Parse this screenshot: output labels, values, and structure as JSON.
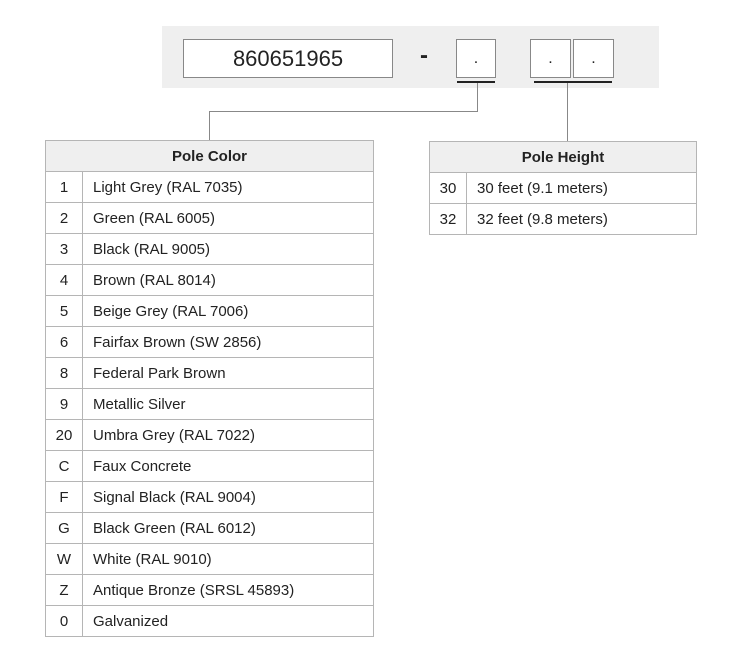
{
  "header": {
    "part_number": "860651965",
    "separator": "-",
    "option_boxes": [
      ".",
      ".",
      "."
    ]
  },
  "tables": [
    {
      "title": "Pole Color",
      "rows": [
        [
          "1",
          "Light Grey (RAL 7035)"
        ],
        [
          "2",
          "Green (RAL 6005)"
        ],
        [
          "3",
          "Black (RAL 9005)"
        ],
        [
          "4",
          "Brown (RAL 8014)"
        ],
        [
          "5",
          "Beige Grey (RAL 7006)"
        ],
        [
          "6",
          "Fairfax Brown (SW 2856)"
        ],
        [
          "8",
          "Federal Park Brown"
        ],
        [
          "9",
          "Metallic Silver"
        ],
        [
          "20",
          "Umbra Grey (RAL 7022)"
        ],
        [
          "C",
          "Faux Concrete"
        ],
        [
          "F",
          "Signal Black (RAL 9004)"
        ],
        [
          "G",
          "Black Green (RAL 6012)"
        ],
        [
          "W",
          "White (RAL 9010)"
        ],
        [
          "Z",
          "Antique Bronze (SRSL 45893)"
        ],
        [
          "0",
          "Galvanized"
        ]
      ]
    },
    {
      "title": "Pole Height",
      "rows": [
        [
          "30",
          "30 feet (9.1 meters)"
        ],
        [
          "32",
          "32 feet (9.8 meters)"
        ]
      ]
    }
  ]
}
